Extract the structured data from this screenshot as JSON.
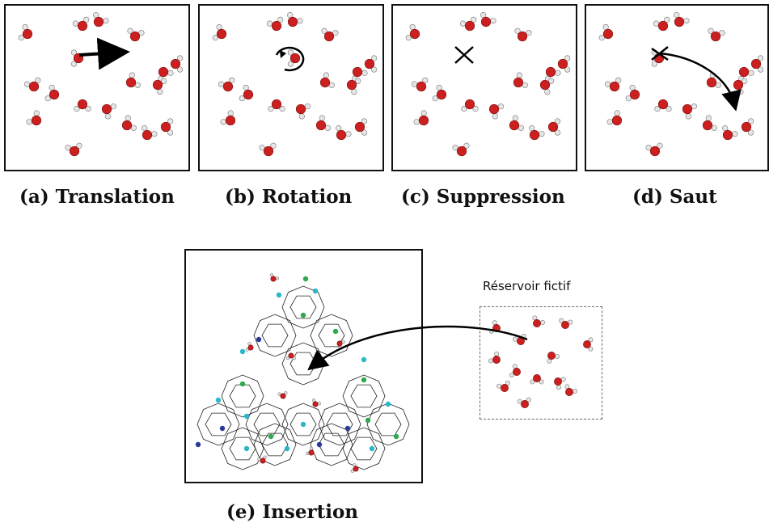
{
  "panels": [
    {
      "id": "a",
      "caption": "(a) Translation",
      "move": "translation"
    },
    {
      "id": "b",
      "caption": "(b) Rotation",
      "move": "rotation"
    },
    {
      "id": "c",
      "caption": "(c) Suppression",
      "move": "suppression"
    },
    {
      "id": "d",
      "caption": "(d) Saut",
      "move": "jump"
    }
  ],
  "insertion": {
    "caption": "(e) Insertion",
    "reservoir_label": "Réservoir fictif"
  },
  "colors": {
    "oxygen": "#cc1f1f",
    "hydrogen": "#e6e6e6",
    "frame": "#111111",
    "ion_green": "#2fa84f",
    "ion_cyan": "#2bb6c9",
    "ion_navy": "#2a3a9a",
    "arrow": "#000000"
  },
  "icons": [
    "translation-arrow-icon",
    "rotation-arrow-icon",
    "delete-cross-icon",
    "jump-arrow-icon",
    "insertion-arrow-icon"
  ]
}
